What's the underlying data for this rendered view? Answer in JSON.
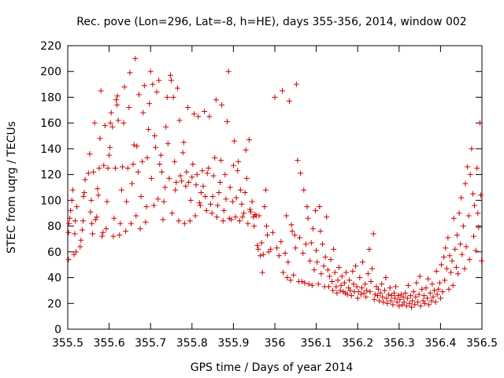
{
  "chart_data": {
    "type": "scatter",
    "title": "Rec. pove (Lon=296, Lat=-8, h=HE), days 355-356, 2014, window 002",
    "xlabel": "GPS time / Days of year 2014",
    "ylabel": "STEC from uqrg / TECUs",
    "xlim": [
      355.5,
      356.5
    ],
    "ylim": [
      0,
      220
    ],
    "xticks": [
      "355.5",
      "355.6",
      "355.7",
      "355.8",
      "355.9",
      "356",
      "356.1",
      "356.2",
      "356.3",
      "356.4",
      "356.5"
    ],
    "yticks": [
      "0",
      "20",
      "40",
      "60",
      "80",
      "100",
      "120",
      "140",
      "160",
      "180",
      "200",
      "220"
    ],
    "grid": false,
    "marker": "+",
    "color": "#cc0000",
    "points": [
      [
        355.502,
        54
      ],
      [
        355.502,
        75
      ],
      [
        355.503,
        82
      ],
      [
        355.505,
        86
      ],
      [
        355.507,
        92
      ],
      [
        355.51,
        100
      ],
      [
        355.512,
        108
      ],
      [
        355.515,
        58
      ],
      [
        355.517,
        74
      ],
      [
        355.518,
        84
      ],
      [
        355.52,
        60
      ],
      [
        355.522,
        95
      ],
      [
        355.53,
        64
      ],
      [
        355.532,
        69
      ],
      [
        355.535,
        77
      ],
      [
        355.537,
        84
      ],
      [
        355.538,
        103
      ],
      [
        355.54,
        106
      ],
      [
        355.542,
        116
      ],
      [
        355.55,
        121
      ],
      [
        355.553,
        136
      ],
      [
        355.555,
        91
      ],
      [
        355.557,
        100
      ],
      [
        355.558,
        82
      ],
      [
        355.56,
        74
      ],
      [
        355.562,
        122
      ],
      [
        355.565,
        160
      ],
      [
        355.567,
        85
      ],
      [
        355.57,
        87
      ],
      [
        355.572,
        109
      ],
      [
        355.574,
        104
      ],
      [
        355.576,
        125
      ],
      [
        355.578,
        148
      ],
      [
        355.58,
        185
      ],
      [
        355.583,
        72
      ],
      [
        355.585,
        75
      ],
      [
        355.587,
        127
      ],
      [
        355.59,
        158
      ],
      [
        355.593,
        78
      ],
      [
        355.595,
        99
      ],
      [
        355.597,
        125
      ],
      [
        355.6,
        135
      ],
      [
        355.602,
        141
      ],
      [
        355.603,
        160
      ],
      [
        355.605,
        168
      ],
      [
        355.608,
        157
      ],
      [
        355.61,
        72
      ],
      [
        355.612,
        86
      ],
      [
        355.615,
        125
      ],
      [
        355.617,
        178
      ],
      [
        355.619,
        174
      ],
      [
        355.62,
        181
      ],
      [
        355.622,
        162
      ],
      [
        355.625,
        73
      ],
      [
        355.627,
        82
      ],
      [
        355.63,
        108
      ],
      [
        355.632,
        126
      ],
      [
        355.635,
        160
      ],
      [
        355.637,
        188
      ],
      [
        355.64,
        76
      ],
      [
        355.642,
        99
      ],
      [
        355.645,
        125
      ],
      [
        355.648,
        172
      ],
      [
        355.65,
        199
      ],
      [
        355.653,
        82
      ],
      [
        355.655,
        113
      ],
      [
        355.658,
        128
      ],
      [
        355.66,
        143
      ],
      [
        355.663,
        210
      ],
      [
        355.665,
        88
      ],
      [
        355.667,
        142
      ],
      [
        355.67,
        122
      ],
      [
        355.672,
        182
      ],
      [
        355.675,
        78
      ],
      [
        355.677,
        103
      ],
      [
        355.68,
        130
      ],
      [
        355.682,
        168
      ],
      [
        355.685,
        189
      ],
      [
        355.688,
        83
      ],
      [
        355.69,
        95
      ],
      [
        355.692,
        133
      ],
      [
        355.695,
        155
      ],
      [
        355.697,
        175
      ],
      [
        355.7,
        200
      ],
      [
        355.702,
        117
      ],
      [
        355.705,
        190
      ],
      [
        355.708,
        96
      ],
      [
        355.71,
        150
      ],
      [
        355.712,
        141
      ],
      [
        355.715,
        184
      ],
      [
        355.718,
        101
      ],
      [
        355.72,
        193
      ],
      [
        355.722,
        128
      ],
      [
        355.725,
        135
      ],
      [
        355.727,
        122
      ],
      [
        355.73,
        85
      ],
      [
        355.732,
        99
      ],
      [
        355.735,
        110
      ],
      [
        355.737,
        157
      ],
      [
        355.74,
        180
      ],
      [
        355.742,
        144
      ],
      [
        355.745,
        117
      ],
      [
        355.748,
        197
      ],
      [
        355.75,
        193
      ],
      [
        355.752,
        90
      ],
      [
        355.755,
        180
      ],
      [
        355.758,
        130
      ],
      [
        355.76,
        108
      ],
      [
        355.762,
        114
      ],
      [
        355.765,
        187
      ],
      [
        355.768,
        84
      ],
      [
        355.77,
        162
      ],
      [
        355.772,
        119
      ],
      [
        355.775,
        115
      ],
      [
        355.778,
        137
      ],
      [
        355.78,
        145
      ],
      [
        355.782,
        82
      ],
      [
        355.785,
        111
      ],
      [
        355.787,
        122
      ],
      [
        355.79,
        172
      ],
      [
        355.792,
        114
      ],
      [
        355.795,
        84
      ],
      [
        355.797,
        100
      ],
      [
        355.8,
        118
      ],
      [
        355.802,
        128
      ],
      [
        355.805,
        167
      ],
      [
        355.808,
        88
      ],
      [
        355.81,
        112
      ],
      [
        355.812,
        120
      ],
      [
        355.815,
        165
      ],
      [
        355.818,
        98
      ],
      [
        355.82,
        96
      ],
      [
        355.822,
        106
      ],
      [
        355.825,
        123
      ],
      [
        355.827,
        111
      ],
      [
        355.83,
        169
      ],
      [
        355.832,
        103
      ],
      [
        355.835,
        92
      ],
      [
        355.837,
        121
      ],
      [
        355.84,
        125
      ],
      [
        355.842,
        165
      ],
      [
        355.845,
        97
      ],
      [
        355.848,
        90
      ],
      [
        355.85,
        103
      ],
      [
        355.852,
        119
      ],
      [
        355.855,
        133
      ],
      [
        355.858,
        178
      ],
      [
        355.86,
        87
      ],
      [
        355.862,
        96
      ],
      [
        355.865,
        106
      ],
      [
        355.868,
        114
      ],
      [
        355.87,
        131
      ],
      [
        355.872,
        174
      ],
      [
        355.875,
        84
      ],
      [
        355.877,
        92
      ],
      [
        355.88,
        120
      ],
      [
        355.882,
        101
      ],
      [
        355.885,
        161
      ],
      [
        355.888,
        200
      ],
      [
        355.89,
        86
      ],
      [
        355.892,
        110
      ],
      [
        355.895,
        85
      ],
      [
        355.898,
        99
      ],
      [
        355.9,
        127
      ],
      [
        355.902,
        146
      ],
      [
        355.905,
        87
      ],
      [
        355.907,
        102
      ],
      [
        355.91,
        123
      ],
      [
        355.912,
        130
      ],
      [
        355.915,
        84
      ],
      [
        355.917,
        108
      ],
      [
        355.92,
        97
      ],
      [
        355.922,
        87
      ],
      [
        355.925,
        90
      ],
      [
        355.928,
        106
      ],
      [
        355.93,
        139
      ],
      [
        355.932,
        117
      ],
      [
        355.935,
        82
      ],
      [
        355.938,
        147
      ],
      [
        355.94,
        93
      ],
      [
        355.942,
        91
      ],
      [
        355.945,
        99
      ],
      [
        355.948,
        87
      ],
      [
        355.95,
        80
      ],
      [
        355.952,
        89
      ],
      [
        355.955,
        88
      ],
      [
        355.958,
        65
      ],
      [
        355.96,
        62
      ],
      [
        355.962,
        88
      ],
      [
        355.965,
        57
      ],
      [
        355.968,
        67
      ],
      [
        355.97,
        44
      ],
      [
        355.972,
        58
      ],
      [
        355.975,
        95
      ],
      [
        355.978,
        108
      ],
      [
        355.98,
        80
      ],
      [
        355.982,
        73
      ],
      [
        355.985,
        60
      ],
      [
        355.99,
        62
      ],
      [
        355.995,
        75
      ],
      [
        356.0,
        180
      ],
      [
        356.005,
        63
      ],
      [
        356.01,
        57
      ],
      [
        356.015,
        68
      ],
      [
        356.018,
        185
      ],
      [
        356.02,
        44
      ],
      [
        356.025,
        59
      ],
      [
        356.028,
        88
      ],
      [
        356.03,
        40
      ],
      [
        356.032,
        52
      ],
      [
        356.035,
        177
      ],
      [
        356.038,
        38
      ],
      [
        356.04,
        81
      ],
      [
        356.042,
        76
      ],
      [
        356.045,
        42
      ],
      [
        356.048,
        73
      ],
      [
        356.05,
        63
      ],
      [
        356.052,
        190
      ],
      [
        356.055,
        131
      ],
      [
        356.058,
        37
      ],
      [
        356.06,
        71
      ],
      [
        356.062,
        121
      ],
      [
        356.065,
        37
      ],
      [
        356.068,
        59
      ],
      [
        356.07,
        108
      ],
      [
        356.072,
        36
      ],
      [
        356.075,
        66
      ],
      [
        356.078,
        95
      ],
      [
        356.08,
        86
      ],
      [
        356.082,
        35
      ],
      [
        356.085,
        53
      ],
      [
        356.088,
        67
      ],
      [
        356.09,
        34
      ],
      [
        356.092,
        78
      ],
      [
        356.095,
        46
      ],
      [
        356.098,
        92
      ],
      [
        356.1,
        61
      ],
      [
        356.102,
        52
      ],
      [
        356.105,
        35
      ],
      [
        356.108,
        95
      ],
      [
        356.11,
        76
      ],
      [
        356.112,
        43
      ],
      [
        356.115,
        66
      ],
      [
        356.118,
        49
      ],
      [
        356.12,
        33
      ],
      [
        356.122,
        56
      ],
      [
        356.125,
        87
      ],
      [
        356.128,
        46
      ],
      [
        356.13,
        33
      ],
      [
        356.132,
        41
      ],
      [
        356.135,
        54
      ],
      [
        356.138,
        37
      ],
      [
        356.14,
        30
      ],
      [
        356.142,
        62
      ],
      [
        356.145,
        44
      ],
      [
        356.148,
        33
      ],
      [
        356.15,
        28
      ],
      [
        356.152,
        38
      ],
      [
        356.155,
        48
      ],
      [
        356.158,
        30
      ],
      [
        356.16,
        34
      ],
      [
        356.162,
        41
      ],
      [
        356.165,
        29
      ],
      [
        356.168,
        36
      ],
      [
        356.17,
        28
      ],
      [
        356.172,
        44
      ],
      [
        356.175,
        27
      ],
      [
        356.178,
        32
      ],
      [
        356.18,
        38
      ],
      [
        356.182,
        30
      ],
      [
        356.185,
        26
      ],
      [
        356.188,
        45
      ],
      [
        356.19,
        35
      ],
      [
        356.192,
        29
      ],
      [
        356.195,
        49
      ],
      [
        356.198,
        33
      ],
      [
        356.2,
        24
      ],
      [
        356.202,
        29
      ],
      [
        356.205,
        40
      ],
      [
        356.208,
        27
      ],
      [
        356.21,
        32
      ],
      [
        356.212,
        52
      ],
      [
        356.215,
        28
      ],
      [
        356.218,
        35
      ],
      [
        356.22,
        25
      ],
      [
        356.222,
        30
      ],
      [
        356.225,
        43
      ],
      [
        356.228,
        62
      ],
      [
        356.23,
        29
      ],
      [
        356.232,
        37
      ],
      [
        356.235,
        47
      ],
      [
        356.238,
        74
      ],
      [
        356.24,
        23
      ],
      [
        356.242,
        27
      ],
      [
        356.245,
        33
      ],
      [
        356.248,
        26
      ],
      [
        356.25,
        31
      ],
      [
        356.252,
        22
      ],
      [
        356.255,
        28
      ],
      [
        356.258,
        35
      ],
      [
        356.26,
        25
      ],
      [
        356.262,
        21
      ],
      [
        356.265,
        30
      ],
      [
        356.268,
        40
      ],
      [
        356.27,
        24
      ],
      [
        356.272,
        20
      ],
      [
        356.275,
        27
      ],
      [
        356.278,
        32
      ],
      [
        356.28,
        22
      ],
      [
        356.282,
        26
      ],
      [
        356.285,
        19
      ],
      [
        356.288,
        28
      ],
      [
        356.29,
        24
      ],
      [
        356.292,
        33
      ],
      [
        356.295,
        21
      ],
      [
        356.298,
        26
      ],
      [
        356.3,
        18
      ],
      [
        356.302,
        23
      ],
      [
        356.305,
        27
      ],
      [
        356.308,
        19
      ],
      [
        356.31,
        25
      ],
      [
        356.312,
        21
      ],
      [
        356.315,
        28
      ],
      [
        356.318,
        18
      ],
      [
        356.32,
        24
      ],
      [
        356.322,
        34
      ],
      [
        356.325,
        20
      ],
      [
        356.328,
        26
      ],
      [
        356.33,
        17
      ],
      [
        356.332,
        22
      ],
      [
        356.335,
        29
      ],
      [
        356.338,
        19
      ],
      [
        356.34,
        25
      ],
      [
        356.342,
        36
      ],
      [
        356.345,
        21
      ],
      [
        356.348,
        27
      ],
      [
        356.35,
        41
      ],
      [
        356.352,
        18
      ],
      [
        356.355,
        31
      ],
      [
        356.358,
        22
      ],
      [
        356.36,
        26
      ],
      [
        356.362,
        20
      ],
      [
        356.365,
        32
      ],
      [
        356.368,
        24
      ],
      [
        356.37,
        39
      ],
      [
        356.372,
        19
      ],
      [
        356.375,
        28
      ],
      [
        356.378,
        22
      ],
      [
        356.38,
        35
      ],
      [
        356.382,
        25
      ],
      [
        356.385,
        30
      ],
      [
        356.388,
        21
      ],
      [
        356.39,
        45
      ],
      [
        356.392,
        27
      ],
      [
        356.395,
        31
      ],
      [
        356.398,
        36
      ],
      [
        356.4,
        24
      ],
      [
        356.402,
        50
      ],
      [
        356.405,
        29
      ],
      [
        356.408,
        56
      ],
      [
        356.41,
        38
      ],
      [
        356.412,
        63
      ],
      [
        356.415,
        47
      ],
      [
        356.418,
        71
      ],
      [
        356.42,
        31
      ],
      [
        356.422,
        57
      ],
      [
        356.425,
        44
      ],
      [
        356.428,
        53
      ],
      [
        356.43,
        34
      ],
      [
        356.432,
        86
      ],
      [
        356.435,
        62
      ],
      [
        356.438,
        48
      ],
      [
        356.44,
        73
      ],
      [
        356.442,
        43
      ],
      [
        356.445,
        90
      ],
      [
        356.448,
        66
      ],
      [
        356.45,
        102
      ],
      [
        356.452,
        58
      ],
      [
        356.455,
        80
      ],
      [
        356.458,
        47
      ],
      [
        356.46,
        113
      ],
      [
        356.462,
        64
      ],
      [
        356.465,
        126
      ],
      [
        356.468,
        88
      ],
      [
        356.47,
        54
      ],
      [
        356.472,
        120
      ],
      [
        356.475,
        140
      ],
      [
        356.478,
        105
      ],
      [
        356.48,
        72
      ],
      [
        356.482,
        96
      ],
      [
        356.485,
        61
      ],
      [
        356.488,
        125
      ],
      [
        356.49,
        90
      ],
      [
        356.492,
        79
      ],
      [
        356.495,
        160
      ],
      [
        356.497,
        104
      ],
      [
        356.499,
        53
      ]
    ]
  }
}
